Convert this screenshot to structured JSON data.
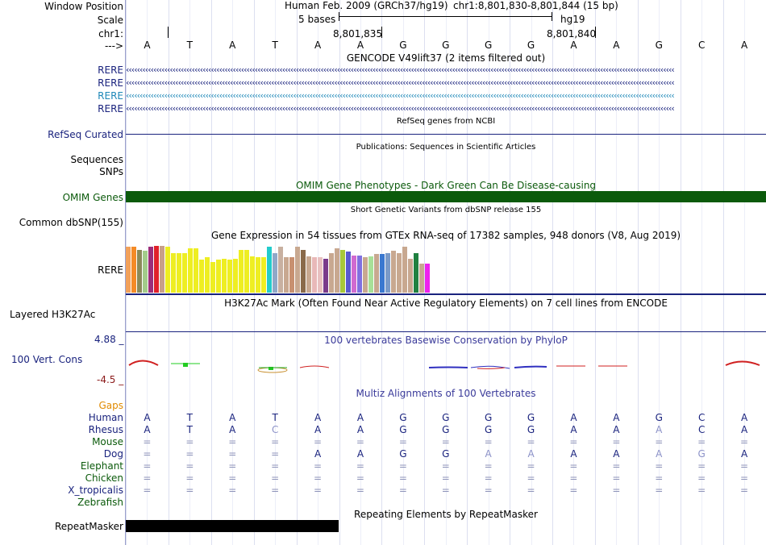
{
  "ruler": {
    "window_position_label": "Window Position",
    "scale_label": "Scale",
    "chrom_label": "chr1:",
    "arrow_label": "--->",
    "assembly_text": "Human Feb. 2009 (GRCh37/hg19)",
    "position_text": "chr1:8,801,830-8,801,844 (15 bp)",
    "scale_text": "5 bases",
    "assembly_short": "hg19",
    "tick1": "8,801,835",
    "tick2": "8,801,840"
  },
  "bases": [
    "A",
    "T",
    "A",
    "T",
    "A",
    "A",
    "G",
    "G",
    "G",
    "G",
    "A",
    "A",
    "G",
    "C",
    "A"
  ],
  "gencode": {
    "title": "GENCODE V49lift37 (2 items filtered out)",
    "items": [
      {
        "label": "RERE",
        "color": "#1a237e"
      },
      {
        "label": "RERE",
        "color": "#1a237e"
      },
      {
        "label": "RERE",
        "color": "#1e88b8"
      },
      {
        "label": "RERE",
        "color": "#1a237e"
      }
    ]
  },
  "refseq": {
    "title": "RefSeq genes from NCBI",
    "label": "RefSeq Curated",
    "color": "#1a237e"
  },
  "publications": {
    "title": "Publications: Sequences in Scientific Articles",
    "label1": "Sequences",
    "label2": "SNPs"
  },
  "omim": {
    "title": "OMIM Gene Phenotypes - Dark Green Can Be Disease-causing",
    "label": "OMIM Genes",
    "color": "#0b5a0b"
  },
  "dbsnp": {
    "title": "Short Genetic Variants from dbSNP release 155",
    "label": "Common dbSNP(155)"
  },
  "gtex": {
    "title": "Gene Expression in 54 tissues from GTEx RNA-seq of 17382 samples, 948 donors (V8, Aug 2019)",
    "label": "RERE",
    "values": [
      0.98,
      0.98,
      0.92,
      0.89,
      0.98,
      1.0,
      1.0,
      0.98,
      0.85,
      0.85,
      0.85,
      0.95,
      0.95,
      0.7,
      0.75,
      0.65,
      0.7,
      0.72,
      0.7,
      0.72,
      0.92,
      0.92,
      0.78,
      0.75,
      0.75,
      0.99,
      0.85,
      0.99,
      0.75,
      0.75,
      0.99,
      0.92,
      0.78,
      0.75,
      0.75,
      0.72,
      0.85,
      0.95,
      0.92,
      0.88,
      0.8,
      0.8,
      0.75,
      0.78,
      0.82,
      0.82,
      0.85,
      0.9,
      0.85,
      0.99,
      0.72,
      0.85,
      0.62,
      0.62
    ],
    "colors": [
      "#f2a15a",
      "#f58b27",
      "#8a8a5a",
      "#a3cc8a",
      "#9b2d7a",
      "#e0202a",
      "#c8a08a",
      "#eeee22",
      "#eeee22",
      "#eeee22",
      "#eeee22",
      "#eeee22",
      "#eeee22",
      "#eeee22",
      "#eeee22",
      "#eeee22",
      "#eeee22",
      "#eeee22",
      "#eeee22",
      "#eeee22",
      "#eeee22",
      "#eeee22",
      "#eeee22",
      "#eeee22",
      "#eeee22",
      "#22cccc",
      "#8fa8c8",
      "#c8b0a0",
      "#c8a890",
      "#c89070",
      "#c8a890",
      "#8a6a4a",
      "#c8a890",
      "#e8b8b8",
      "#e8c0c0",
      "#7a3a8a",
      "#c8a890",
      "#c8a890",
      "#a8c838",
      "#5a5ad0",
      "#d06ad0",
      "#8070e0",
      "#c8a890",
      "#a8e098",
      "#c8a890",
      "#3a78d0",
      "#7a9ac8",
      "#c8a890",
      "#c8a890",
      "#c8a890",
      "#c8a890",
      "#208040",
      "#c8a890",
      "#ee22ee"
    ]
  },
  "h3k27ac": {
    "title": "H3K27Ac Mark (Often Found Near Active Regulatory Elements) on 7 cell lines from ENCODE",
    "label": "Layered H3K27Ac"
  },
  "phylop": {
    "title": "100 vertebrates Basewise Conservation by PhyloP",
    "label": "100 Vert. Cons",
    "ymax": "4.88 _",
    "ymin": "-4.5 _"
  },
  "multiz": {
    "title": "Multiz Alignments of 100 Vertebrates",
    "gaps_label": "Gaps",
    "species": [
      {
        "name": "Human",
        "color": "#1a237e",
        "bases": [
          "A",
          "T",
          "A",
          "T",
          "A",
          "A",
          "G",
          "G",
          "G",
          "G",
          "A",
          "A",
          "G",
          "C",
          "A"
        ]
      },
      {
        "name": "Rhesus",
        "color": "#1a237e",
        "bases": [
          "A",
          "T",
          "A",
          "C",
          "A",
          "A",
          "G",
          "G",
          "G",
          "G",
          "A",
          "A",
          "A",
          "C",
          "A"
        ]
      },
      {
        "name": "Mouse",
        "color": "#0b5a0b",
        "bases": [
          "=",
          "=",
          "=",
          "=",
          "=",
          "=",
          "=",
          "=",
          "=",
          "=",
          "=",
          "=",
          "=",
          "=",
          "="
        ]
      },
      {
        "name": "Dog",
        "color": "#1a237e",
        "bases": [
          "=",
          "=",
          "=",
          "=",
          "A",
          "A",
          "G",
          "G",
          "A",
          "A",
          "A",
          "A",
          "A",
          "G",
          "A"
        ]
      },
      {
        "name": "Elephant",
        "color": "#0b5a0b",
        "bases": [
          "=",
          "=",
          "=",
          "=",
          "=",
          "=",
          "=",
          "=",
          "=",
          "=",
          "=",
          "=",
          "=",
          "=",
          "="
        ]
      },
      {
        "name": "Chicken",
        "color": "#0b5a0b",
        "bases": [
          "=",
          "=",
          "=",
          "=",
          "=",
          "=",
          "=",
          "=",
          "=",
          "=",
          "=",
          "=",
          "=",
          "=",
          "="
        ]
      },
      {
        "name": "X_tropicalis",
        "color": "#1a237e",
        "bases": [
          "=",
          "=",
          "=",
          "=",
          "=",
          "=",
          "=",
          "=",
          "=",
          "=",
          "=",
          "=",
          "=",
          "=",
          "="
        ]
      },
      {
        "name": "Zebrafish",
        "color": "#0b5a0b",
        "bases": []
      }
    ],
    "faded": [
      [
        1,
        3
      ],
      [
        1,
        12
      ],
      [
        3,
        8
      ],
      [
        3,
        9
      ],
      [
        3,
        12
      ],
      [
        3,
        13
      ]
    ]
  },
  "repeatmasker": {
    "title": "Repeating Elements by RepeatMasker",
    "label": "RepeatMasker"
  }
}
